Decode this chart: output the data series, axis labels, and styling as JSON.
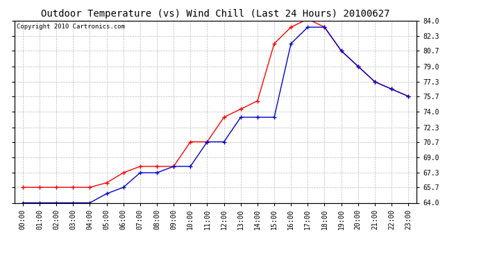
{
  "title": "Outdoor Temperature (vs) Wind Chill (Last 24 Hours) 20100627",
  "copyright": "Copyright 2010 Cartronics.com",
  "hours": [
    "00:00",
    "01:00",
    "02:00",
    "03:00",
    "04:00",
    "05:00",
    "06:00",
    "07:00",
    "08:00",
    "09:00",
    "10:00",
    "11:00",
    "12:00",
    "13:00",
    "14:00",
    "15:00",
    "16:00",
    "17:00",
    "18:00",
    "19:00",
    "20:00",
    "21:00",
    "22:00",
    "23:00"
  ],
  "temp": [
    65.7,
    65.7,
    65.7,
    65.7,
    65.7,
    66.2,
    67.3,
    68.0,
    68.0,
    68.0,
    70.7,
    70.7,
    73.4,
    74.3,
    75.2,
    81.5,
    83.3,
    84.2,
    83.3,
    80.7,
    79.0,
    77.3,
    76.5,
    75.7
  ],
  "windchill": [
    64.0,
    64.0,
    64.0,
    64.0,
    64.0,
    65.0,
    65.7,
    67.3,
    67.3,
    68.0,
    68.0,
    70.7,
    70.7,
    73.4,
    73.4,
    73.4,
    81.5,
    83.3,
    83.3,
    80.7,
    79.0,
    77.3,
    76.5,
    75.7
  ],
  "temp_color": "#ff0000",
  "windchill_color": "#0000cc",
  "ylim": [
    64.0,
    84.0
  ],
  "yticks": [
    64.0,
    65.7,
    67.3,
    69.0,
    70.7,
    72.3,
    74.0,
    75.7,
    77.3,
    79.0,
    80.7,
    82.3,
    84.0
  ],
  "bg_color": "#ffffff",
  "plot_bg": "#ffffff",
  "grid_color": "#bbbbbb",
  "title_fontsize": 10,
  "copyright_fontsize": 6.5,
  "tick_fontsize": 7
}
